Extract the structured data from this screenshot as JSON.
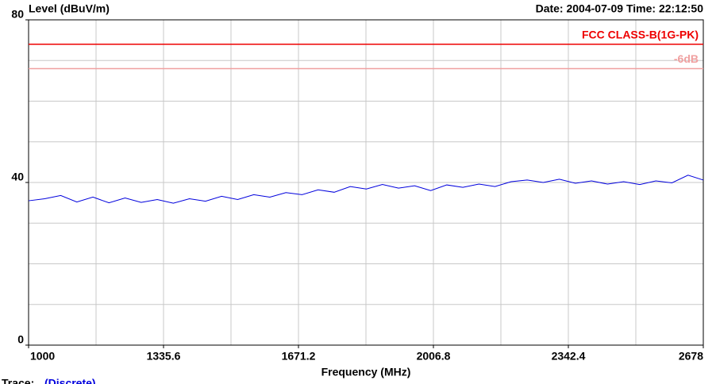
{
  "chart_data": {
    "type": "line",
    "y_label": "Level (dBuV/m)",
    "date_time": "Date: 2004-07-09  Time: 22:12:50",
    "x_label": "Frequency (MHz)",
    "trace_label": "Trace:",
    "trace_value": "(Discrete)",
    "xlim": [
      1000,
      2678
    ],
    "xticks": [
      1000,
      1335.6,
      1671.2,
      2006.8,
      2342.4,
      2678
    ],
    "xgrid": [
      1000,
      1167.8,
      1335.6,
      1503.4,
      1671.2,
      1839,
      2006.8,
      2174.6,
      2342.4,
      2510.2,
      2678
    ],
    "ylim": [
      0,
      80
    ],
    "yticks": [
      0,
      40,
      80
    ],
    "ygrid": [
      0,
      10,
      20,
      30,
      40,
      50,
      60,
      70,
      80
    ],
    "grid": true,
    "limit_lines": [
      {
        "name": "FCC CLASS-B(1G-PK)",
        "value": 74,
        "color": "#ee0000"
      },
      {
        "name": "-6dB",
        "value": 68,
        "color": "#f0a0a0"
      }
    ],
    "x": [
      1000,
      1040,
      1080,
      1120,
      1160,
      1200,
      1240,
      1280,
      1320,
      1360,
      1400,
      1440,
      1480,
      1520,
      1560,
      1600,
      1640,
      1680,
      1720,
      1760,
      1800,
      1840,
      1880,
      1920,
      1960,
      2000,
      2040,
      2080,
      2120,
      2160,
      2200,
      2240,
      2280,
      2320,
      2360,
      2400,
      2440,
      2480,
      2520,
      2560,
      2600,
      2640,
      2678
    ],
    "series": [
      {
        "color": "#0000dd",
        "values": [
          35.5,
          36.0,
          36.8,
          35.2,
          36.4,
          35.0,
          36.2,
          35.1,
          35.8,
          34.9,
          36.0,
          35.4,
          36.6,
          35.8,
          37.0,
          36.4,
          37.5,
          37.0,
          38.2,
          37.6,
          39.0,
          38.4,
          39.5,
          38.6,
          39.2,
          38.0,
          39.4,
          38.8,
          39.6,
          39.0,
          40.2,
          40.6,
          40.0,
          40.8,
          39.8,
          40.4,
          39.6,
          40.2,
          39.5,
          40.4,
          39.9,
          41.8,
          40.6
        ]
      }
    ]
  }
}
